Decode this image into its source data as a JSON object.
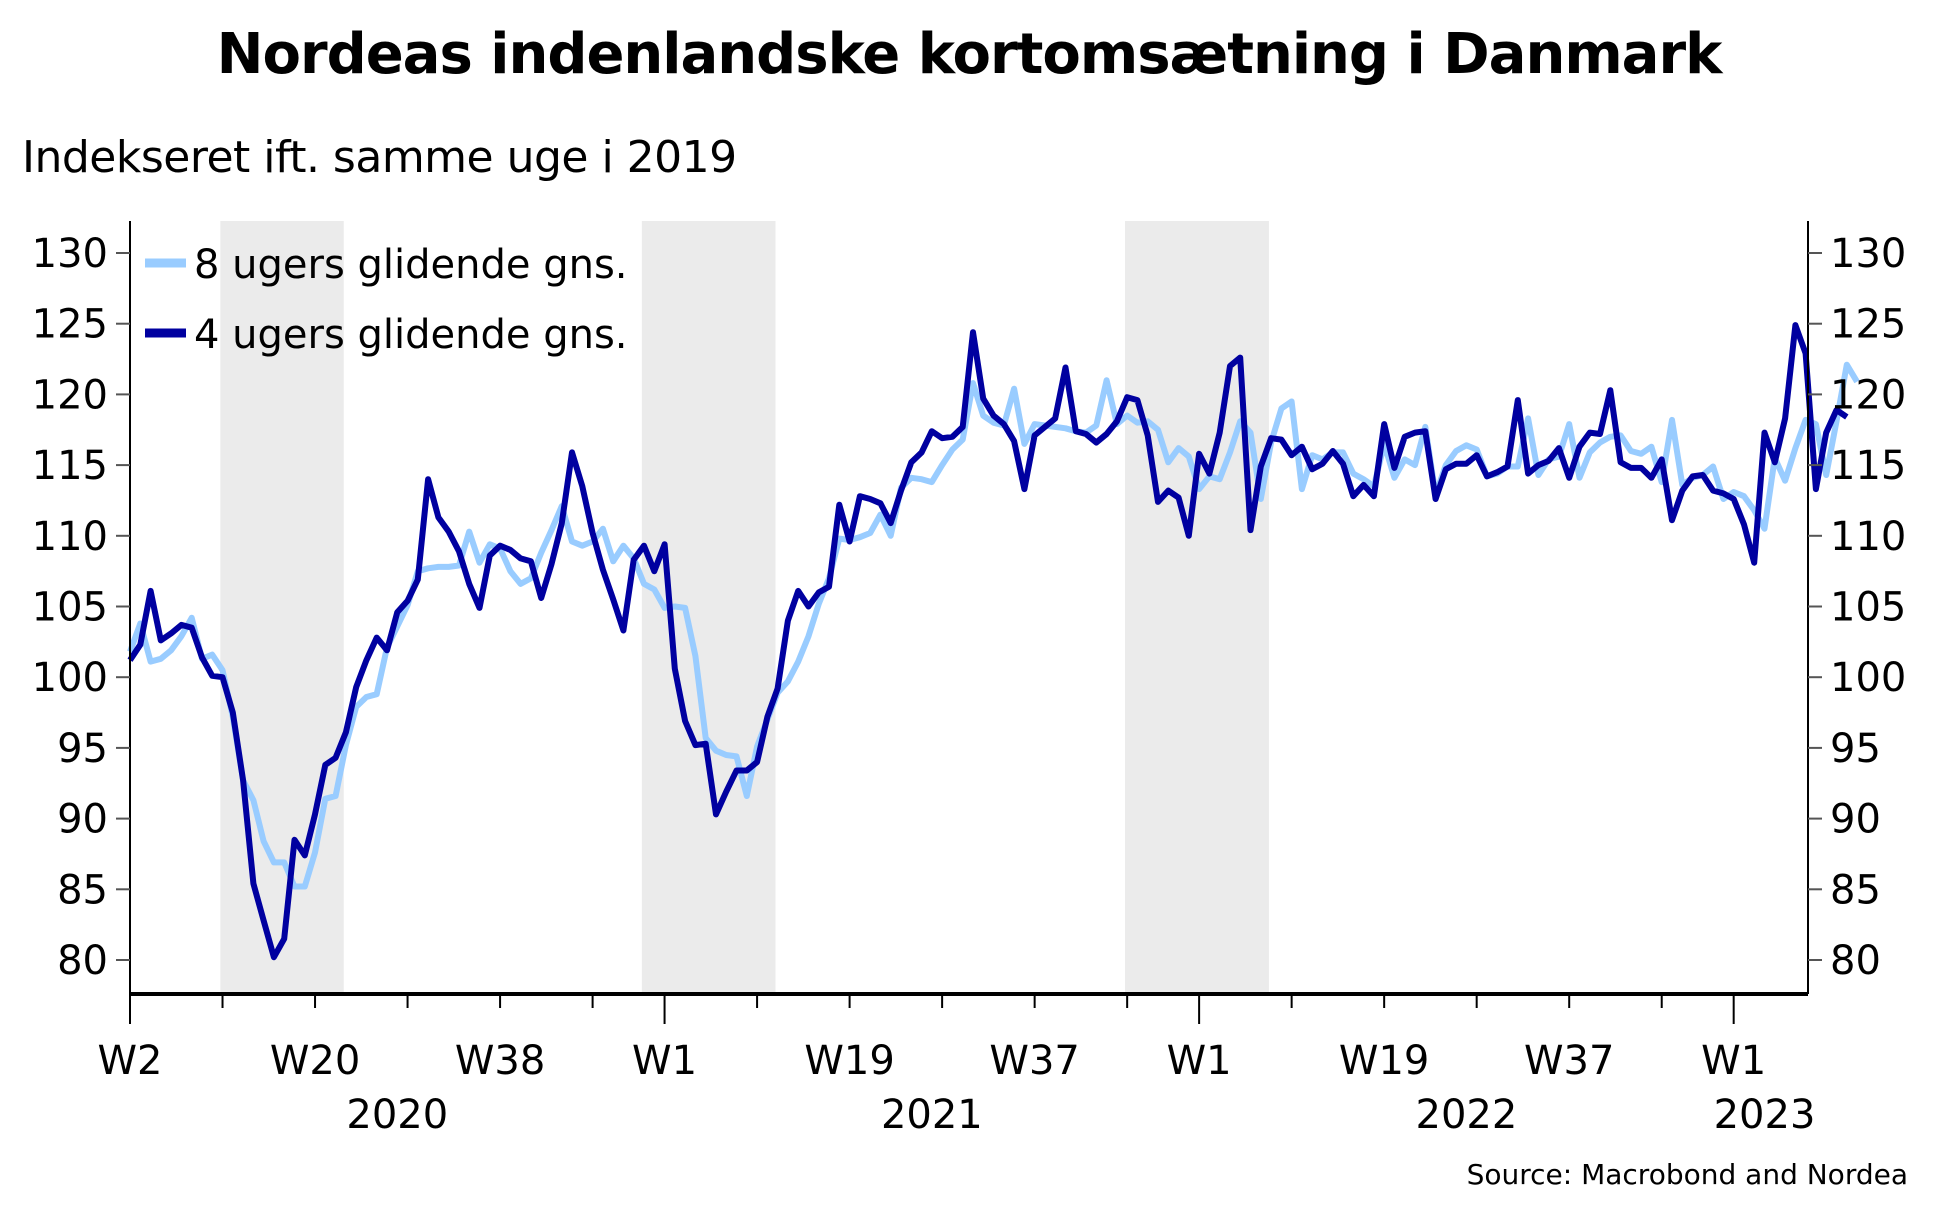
{
  "title": "Nordeas indenlandske kortomsætning i Danmark",
  "subtitle": "Indekseret ift. samme uge i 2019",
  "source": "Source: Macrobond and Nordea",
  "colors": {
    "series_8w": "#99CCFF",
    "series_4w": "#0000A0",
    "shading": "#EBEBEB",
    "axis": "#000000"
  },
  "legend": [
    {
      "label": "8 ugers glidende gns.",
      "color": "#99CCFF"
    },
    {
      "label": "4 ugers glidende gns.",
      "color": "#0000A0"
    }
  ],
  "y_ticks": [
    "130",
    "125",
    "120",
    "115",
    "110",
    "105",
    "100",
    "95",
    "90",
    "85",
    "80"
  ],
  "x_ticks": [
    {
      "label": "W2",
      "week_index": 0
    },
    {
      "label": "W20",
      "week_index": 18
    },
    {
      "label": "W38",
      "week_index": 36
    },
    {
      "label": "W1",
      "week_index": 52
    },
    {
      "label": "W19",
      "week_index": 70
    },
    {
      "label": "W37",
      "week_index": 88
    },
    {
      "label": "W1",
      "week_index": 104
    },
    {
      "label": "W19",
      "week_index": 122
    },
    {
      "label": "W37",
      "week_index": 140
    },
    {
      "label": "W1",
      "week_index": 156
    }
  ],
  "year_labels": [
    {
      "label": "2020",
      "week_index": 26
    },
    {
      "label": "2021",
      "week_index": 78
    },
    {
      "label": "2022",
      "week_index": 130
    },
    {
      "label": "2023",
      "week_index": 159
    }
  ],
  "chart_data": {
    "type": "line",
    "title": "Nordeas indenlandske kortomsætning i Danmark",
    "subtitle": "Indekseret ift. samme uge i 2019",
    "xlabel": "",
    "ylabel": "",
    "ylim": [
      77.5,
      132
    ],
    "y_ticks": [
      80,
      85,
      90,
      95,
      100,
      105,
      110,
      115,
      120,
      125,
      130
    ],
    "grid": false,
    "legend_position": "top-left",
    "dual_y_axis_mirrored": true,
    "x_start": "2020-W2",
    "x_frequency": "weekly",
    "shaded_periods": [
      {
        "start_week_index": 9,
        "end_week_index": 20
      },
      {
        "start_week_index": 50,
        "end_week_index": 62
      },
      {
        "start_week_index": 97,
        "end_week_index": 110
      }
    ],
    "series": [
      {
        "name": "8 ugers glidende gns.",
        "color": "#99CCFF",
        "values": [
          101.8,
          103.8,
          101.1,
          101.3,
          101.9,
          102.9,
          104.2,
          101.3,
          101.6,
          100.5,
          97.2,
          92.7,
          91.3,
          88.4,
          86.9,
          86.9,
          85.2,
          85.2,
          87.6,
          91.4,
          91.6,
          95.2,
          97.9,
          98.6,
          98.8,
          102.1,
          103.6,
          105.1,
          107.5,
          107.7,
          107.8,
          107.8,
          107.9,
          110.3,
          108.1,
          109.4,
          109.1,
          107.5,
          106.6,
          107.0,
          108.8,
          110.4,
          112.1,
          109.6,
          109.3,
          109.6,
          110.5,
          108.2,
          109.3,
          108.4,
          106.6,
          106.2,
          104.9,
          105.0,
          104.9,
          101.5,
          95.7,
          94.8,
          94.5,
          94.4,
          91.6,
          95.1,
          97.0,
          98.9,
          99.7,
          101.1,
          102.9,
          105.2,
          107.0,
          109.8,
          109.7,
          109.9,
          110.2,
          111.5,
          110.0,
          113.4,
          114.1,
          114.0,
          113.8,
          115.0,
          116.1,
          116.8,
          120.8,
          118.5,
          118.0,
          117.8,
          120.4,
          116.5,
          117.9,
          117.8,
          117.7,
          117.6,
          117.4,
          117.3,
          117.8,
          121.0,
          117.9,
          118.5,
          118.0,
          118.1,
          117.5,
          115.2,
          116.2,
          115.6,
          113.3,
          114.2,
          114.0,
          115.9,
          118.1,
          117.3,
          112.6,
          116.6,
          119.0,
          119.5,
          113.3,
          115.7,
          115.4,
          115.9,
          115.9,
          114.4,
          114.0,
          113.5,
          116.5,
          114.1,
          115.4,
          115.0,
          117.7,
          112.9,
          115.0,
          116.0,
          116.4,
          116.1,
          114.2,
          114.4,
          114.9,
          114.9,
          118.3,
          114.3,
          115.4,
          115.6,
          117.9,
          114.1,
          115.9,
          116.6,
          117.0,
          117.1,
          116.0,
          115.8,
          116.3,
          113.8,
          118.2,
          113.6,
          114.1,
          114.3,
          114.9,
          112.6,
          113.1,
          112.8,
          111.8,
          110.5,
          115.5,
          113.9,
          116.2,
          118.2,
          117.9,
          114.3,
          118.1,
          122.1,
          120.9
        ]
      },
      {
        "name": "4 ugers glidende gns.",
        "color": "#0000A0",
        "values": [
          101.2,
          102.3,
          106.1,
          102.6,
          103.1,
          103.7,
          103.5,
          101.4,
          100.1,
          100.0,
          97.5,
          92.7,
          85.4,
          82.8,
          80.2,
          81.5,
          88.5,
          87.4,
          90.3,
          93.8,
          94.3,
          96.1,
          99.3,
          101.2,
          102.8,
          101.9,
          104.6,
          105.4,
          106.9,
          114.0,
          111.3,
          110.3,
          108.9,
          106.6,
          104.9,
          108.6,
          109.3,
          109.0,
          108.4,
          108.2,
          105.6,
          108.0,
          110.9,
          115.9,
          113.5,
          110.2,
          107.6,
          105.5,
          103.3,
          108.3,
          109.3,
          107.5,
          109.4,
          100.6,
          96.9,
          95.2,
          95.3,
          90.3,
          91.9,
          93.4,
          93.4,
          94.0,
          97.2,
          99.2,
          104.0,
          106.1,
          105.0,
          106.0,
          106.4,
          112.2,
          109.6,
          112.8,
          112.6,
          112.3,
          110.9,
          113.2,
          115.2,
          115.9,
          117.4,
          116.9,
          117.0,
          117.7,
          124.4,
          119.7,
          118.5,
          117.9,
          116.7,
          113.3,
          117.1,
          117.7,
          118.3,
          121.9,
          117.4,
          117.2,
          116.6,
          117.2,
          118.1,
          119.8,
          119.6,
          117.1,
          112.4,
          113.2,
          112.7,
          110.0,
          115.8,
          114.4,
          117.3,
          122.0,
          122.6,
          110.4,
          114.9,
          116.9,
          116.8,
          115.7,
          116.3,
          114.7,
          115.1,
          116.0,
          115.1,
          112.8,
          113.6,
          112.8,
          117.9,
          114.8,
          117.0,
          117.3,
          117.4,
          112.6,
          114.7,
          115.1,
          115.1,
          115.7,
          114.2,
          114.5,
          114.9,
          119.6,
          114.4,
          115.0,
          115.3,
          116.2,
          114.1,
          116.3,
          117.3,
          117.2,
          120.3,
          115.2,
          114.8,
          114.8,
          114.1,
          115.4,
          111.1,
          113.2,
          114.2,
          114.3,
          113.2,
          113.0,
          112.6,
          110.8,
          108.1,
          117.3,
          115.2,
          118.3,
          124.9,
          122.9,
          113.3,
          117.3,
          118.9,
          118.4
        ]
      }
    ]
  }
}
